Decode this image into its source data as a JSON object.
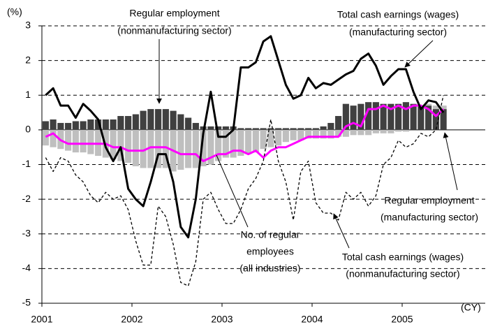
{
  "chart_data": {
    "type": "bar",
    "y_axis_label": "(%)",
    "x_axis_label": "(CY)",
    "categories": [
      "2001",
      null,
      null,
      null,
      null,
      null,
      null,
      null,
      null,
      null,
      null,
      null,
      "2002",
      null,
      null,
      null,
      null,
      null,
      null,
      null,
      null,
      null,
      null,
      null,
      "2003",
      null,
      null,
      null,
      null,
      null,
      null,
      null,
      null,
      null,
      null,
      null,
      "2004",
      null,
      null,
      null,
      null,
      null,
      null,
      null,
      null,
      null,
      null,
      null,
      "2005",
      null,
      null,
      null,
      null,
      null
    ],
    "ylim": [
      -5,
      3
    ],
    "yticks": [
      3,
      2,
      1,
      0,
      -1,
      -2,
      -3,
      -4,
      -5
    ],
    "grid": true,
    "series": [
      {
        "name": "Regular employment (nonmanufacturing sector)",
        "type": "bar",
        "color": "#404040",
        "values": [
          0.25,
          0.3,
          0.2,
          0.2,
          0.25,
          0.25,
          0.3,
          0.3,
          0.3,
          0.3,
          0.4,
          0.4,
          0.45,
          0.55,
          0.6,
          0.6,
          0.6,
          0.55,
          0.45,
          0.35,
          0.2,
          0.1,
          0.1,
          0.1,
          0.1,
          0.1,
          0.05,
          0.05,
          0.05,
          0.05,
          0.05,
          0.05,
          0.05,
          0.05,
          0.05,
          0.05,
          0.05,
          0.1,
          0.2,
          0.4,
          0.75,
          0.7,
          0.75,
          0.8,
          0.8,
          0.75,
          0.75,
          0.75,
          0.8,
          0.75,
          0.7,
          0.7,
          0.6,
          0.6
        ]
      },
      {
        "name": "Regular employment (manufacturing sector)",
        "type": "bar",
        "color": "#bfbfbf",
        "values": [
          -0.45,
          -0.5,
          -0.55,
          -0.6,
          -0.65,
          -0.65,
          -0.7,
          -0.75,
          -0.8,
          -0.85,
          -0.9,
          -0.95,
          -1.05,
          -1.1,
          -1.1,
          -1.1,
          -1.1,
          -1.2,
          -1.15,
          -1.1,
          -1.1,
          -1.05,
          -1.0,
          -0.9,
          -0.8,
          -0.8,
          -0.75,
          -0.7,
          -0.65,
          -0.55,
          -0.5,
          -0.45,
          -0.35,
          -0.3,
          -0.3,
          -0.25,
          -0.25,
          -0.25,
          -0.25,
          -0.2,
          -0.2,
          -0.15,
          -0.15,
          -0.15,
          -0.1,
          -0.1,
          -0.1,
          -0.05,
          -0.05,
          0.0,
          0.0,
          0.05,
          0.1,
          0.1
        ]
      },
      {
        "name": "No. of regular employees (all industries)",
        "type": "line",
        "color": "#ff00ff",
        "width": 3,
        "values": [
          -0.2,
          -0.1,
          -0.3,
          -0.4,
          -0.4,
          -0.4,
          -0.4,
          -0.4,
          -0.4,
          -0.5,
          -0.5,
          -0.6,
          -0.6,
          -0.6,
          -0.5,
          -0.5,
          -0.5,
          -0.6,
          -0.7,
          -0.7,
          -0.7,
          -0.9,
          -0.8,
          -0.7,
          -0.7,
          -0.6,
          -0.6,
          -0.7,
          -0.6,
          -0.8,
          -0.6,
          -0.5,
          -0.5,
          -0.4,
          -0.3,
          -0.2,
          -0.2,
          -0.2,
          -0.2,
          -0.2,
          0.1,
          0.2,
          0.1,
          0.6,
          0.6,
          0.7,
          0.6,
          0.7,
          0.6,
          0.7,
          0.7,
          0.6,
          0.4,
          0.6
        ]
      },
      {
        "name": "Total cash earnings (wages) (manufacturing sector)",
        "type": "line",
        "color": "#000000",
        "width": 3,
        "values": [
          1.0,
          1.2,
          0.7,
          0.7,
          0.35,
          0.75,
          0.55,
          0.3,
          -0.5,
          -0.9,
          -0.5,
          -1.7,
          -2.0,
          -2.2,
          -1.5,
          -0.7,
          -0.7,
          -1.5,
          -2.8,
          -3.1,
          -2.0,
          -0.1,
          1.1,
          -0.2,
          -0.2,
          0.0,
          1.8,
          1.8,
          1.95,
          2.55,
          2.7,
          2.0,
          1.3,
          0.9,
          1.0,
          1.5,
          1.2,
          1.35,
          1.3,
          1.45,
          1.6,
          1.7,
          2.05,
          2.2,
          1.85,
          1.3,
          1.55,
          1.75,
          1.75,
          1.1,
          0.6,
          0.85,
          0.8,
          0.5
        ]
      },
      {
        "name": "Total cash earnings (wages) (nonmanufacturing sector)",
        "type": "line",
        "color": "#000000",
        "width": 1.3,
        "dashed": true,
        "values": [
          -0.8,
          -1.2,
          -0.8,
          -0.9,
          -1.3,
          -1.5,
          -1.9,
          -2.1,
          -1.8,
          -2.0,
          -1.9,
          -2.3,
          -3.2,
          -3.9,
          -3.9,
          -2.2,
          -2.5,
          -3.3,
          -4.4,
          -4.5,
          -3.8,
          -2.0,
          -1.8,
          -2.3,
          -2.7,
          -2.7,
          -2.3,
          -1.7,
          -1.4,
          -0.9,
          0.3,
          -0.9,
          -1.5,
          -2.6,
          -1.2,
          -0.9,
          -2.1,
          -2.4,
          -2.4,
          -2.6,
          -1.8,
          -2.0,
          -1.8,
          -2.2,
          -1.9,
          -1.0,
          -0.8,
          -0.3,
          -0.5,
          -0.4,
          -0.1,
          -0.2,
          0.0,
          1.0
        ]
      }
    ],
    "annotations": [
      {
        "lines": [
          "Regular employment",
          "(nonmanufacturing sector)"
        ]
      },
      {
        "lines": [
          "Total cash earnings (wages)",
          "(manufacturing sector)"
        ]
      },
      {
        "lines": [
          "Regular employment",
          "(manufacturing sector)"
        ]
      },
      {
        "lines": [
          "No. of regular",
          "employees",
          "(all industries)"
        ]
      },
      {
        "lines": [
          "Total cash earnings (wages)",
          "(nonmanufacturing sector)"
        ]
      }
    ]
  }
}
